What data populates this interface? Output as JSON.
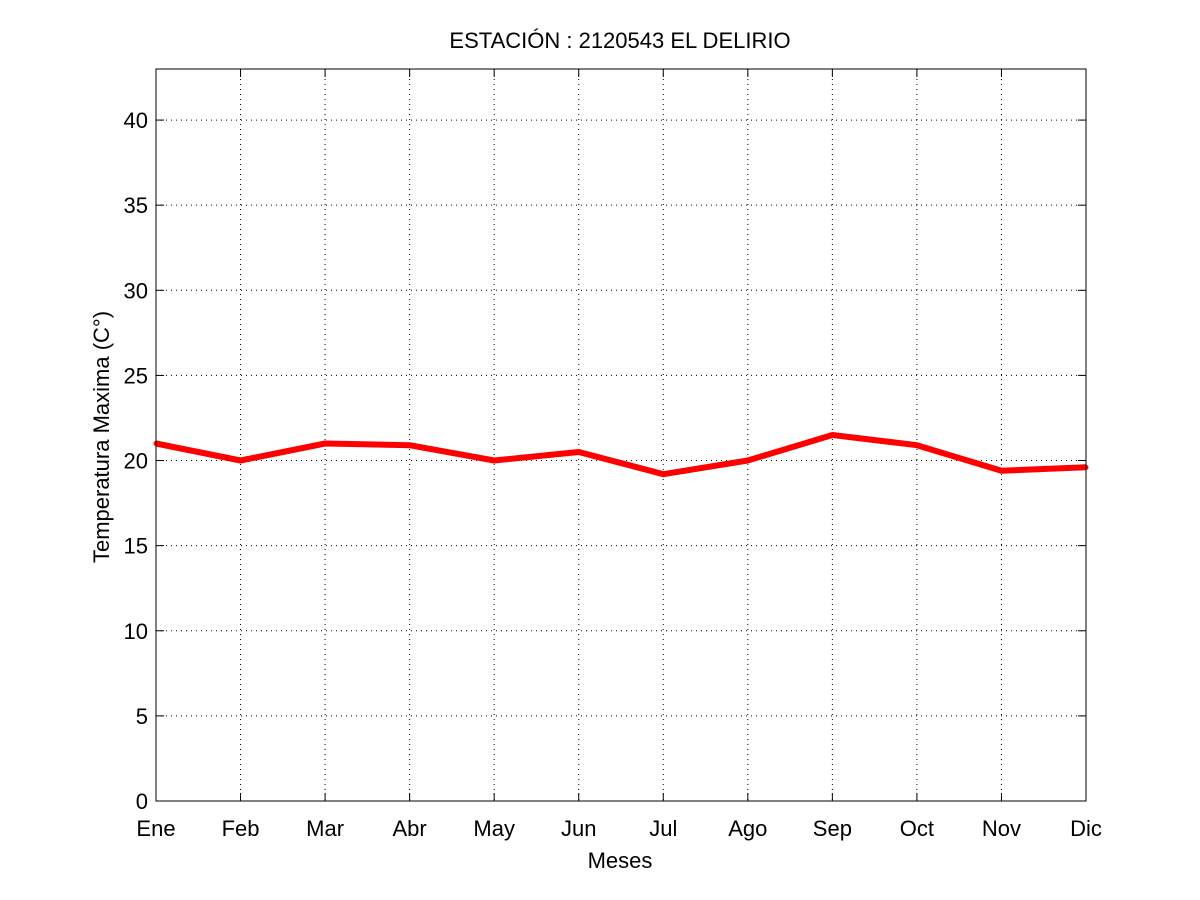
{
  "chart_data": {
    "type": "line",
    "title": "ESTACIÓN :  2120543  EL DELIRIO",
    "xlabel": "Meses",
    "ylabel": "Temperatura Maxima (C°)",
    "categories": [
      "Ene",
      "Feb",
      "Mar",
      "Abr",
      "May",
      "Jun",
      "Jul",
      "Ago",
      "Sep",
      "Oct",
      "Nov",
      "Dic"
    ],
    "ylim": [
      0,
      43
    ],
    "yticks": [
      0,
      5,
      10,
      15,
      20,
      25,
      30,
      35,
      40
    ],
    "grid": true,
    "series": [
      {
        "color": "#ff0000",
        "values": [
          21.0,
          20.0,
          21.0,
          20.9,
          20.0,
          20.5,
          19.2,
          20.0,
          21.5,
          20.9,
          19.4,
          19.6
        ]
      }
    ]
  }
}
